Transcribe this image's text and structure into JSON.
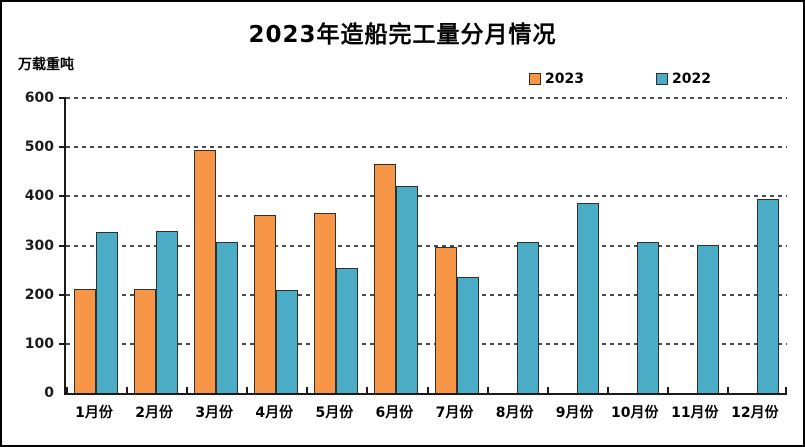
{
  "title": "2023年造船完工量分月情况",
  "y_axis_unit": "万载重吨",
  "colors": {
    "series_2023": "#F79646",
    "series_2022": "#4BACC6",
    "bar_border": "#2F2F2F",
    "axis": "#1A1A1A",
    "gridline": "#4A4A4A",
    "frame_border": "#000000",
    "background": "#FFFFFF"
  },
  "chart_data": {
    "type": "bar",
    "title": "2023年造船完工量分月情况",
    "xlabel": "",
    "ylabel": "万载重吨",
    "categories": [
      "1月份",
      "2月份",
      "3月份",
      "4月份",
      "5月份",
      "6月份",
      "7月份",
      "8月份",
      "9月份",
      "10月份",
      "11月份",
      "12月份"
    ],
    "series": [
      {
        "name": "2023",
        "color": "#F79646",
        "values": [
          211,
          212,
          494,
          363,
          367,
          466,
          296,
          null,
          null,
          null,
          null,
          null
        ]
      },
      {
        "name": "2022",
        "color": "#4BACC6",
        "values": [
          327,
          330,
          308,
          210,
          255,
          421,
          235,
          308,
          386,
          307,
          301,
          394
        ]
      }
    ],
    "ylim": [
      0,
      600
    ],
    "yticks": [
      0,
      100,
      200,
      300,
      400,
      500,
      600
    ],
    "grid": "horizontal-dashed",
    "legend_position": "top-inside-right"
  }
}
